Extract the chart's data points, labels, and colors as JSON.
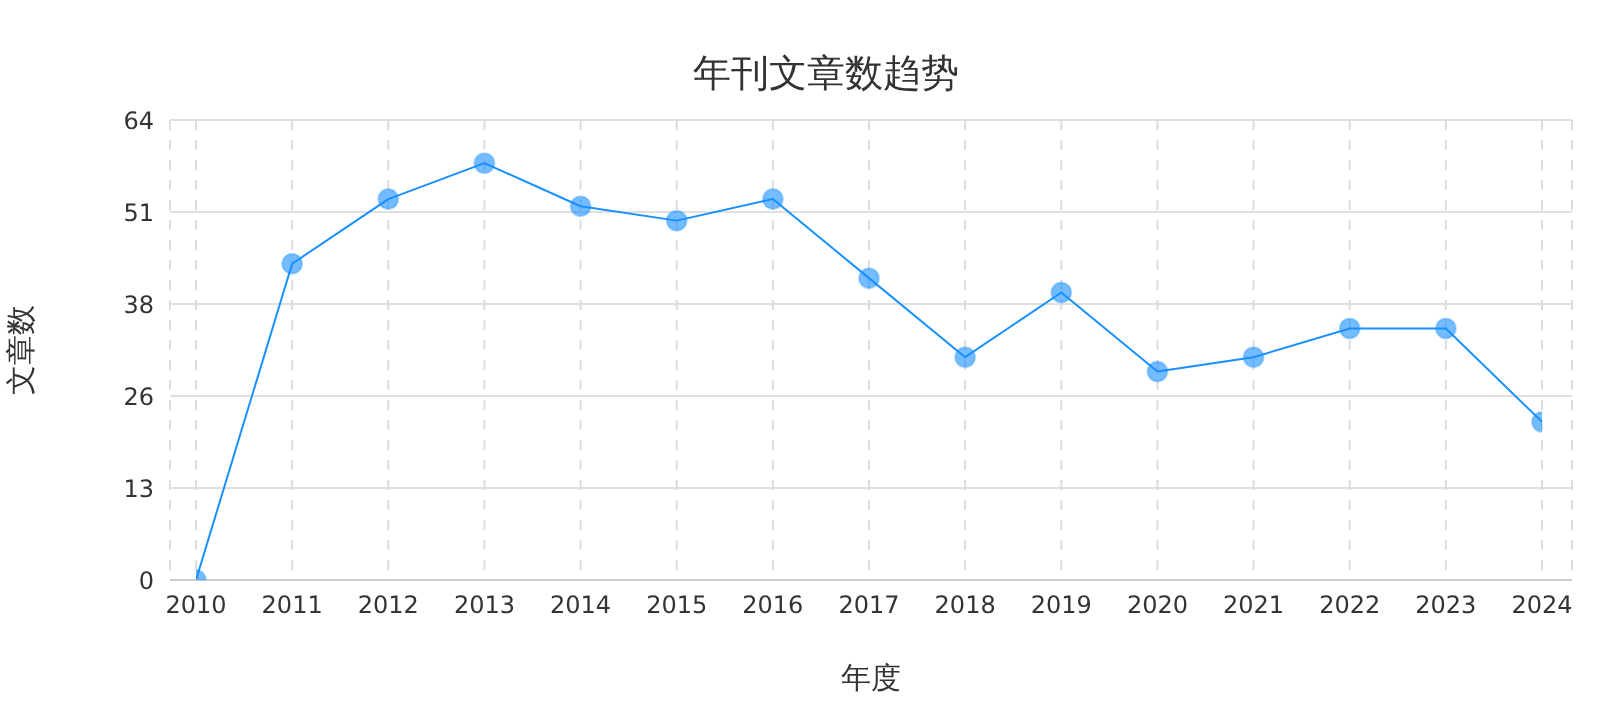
{
  "chart_data": {
    "type": "line",
    "title": "年刊文章数趋势",
    "xlabel": "年度",
    "ylabel": "文章数",
    "categories": [
      "2010",
      "2011",
      "2012",
      "2013",
      "2014",
      "2015",
      "2016",
      "2017",
      "2018",
      "2019",
      "2020",
      "2021",
      "2022",
      "2023",
      "2024"
    ],
    "series": [
      {
        "color": "#1890ff",
        "values": [
          0,
          44,
          53,
          58,
          52,
          50,
          53,
          42,
          31,
          40,
          29,
          31,
          35,
          35,
          22
        ]
      }
    ],
    "ylim": [
      0,
      64
    ],
    "yticks": [
      0,
      {
        "value": 12.8,
        "label": "13"
      },
      {
        "value": 25.6,
        "label": "26"
      },
      {
        "value": 38.4,
        "label": "38"
      },
      {
        "value": 51.2,
        "label": "51"
      },
      64
    ],
    "grid": true,
    "marker": "circle",
    "line_style": "solid"
  }
}
